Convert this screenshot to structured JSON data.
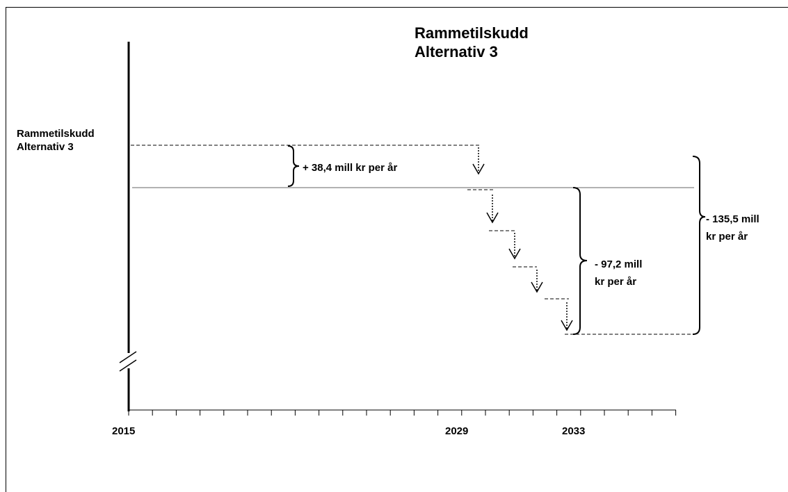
{
  "title": [
    "Rammetilskudd",
    "Alternativ 3"
  ],
  "level_label": [
    "Rammetilskudd",
    "Alternativ 3"
  ],
  "annotations": {
    "increase": "+ 38,4 mill kr per år",
    "decrease_step": [
      "- 97,2 mill",
      "kr per år"
    ],
    "decrease_total": [
      "- 135,5 mill",
      "kr per år"
    ]
  },
  "x_labels": [
    "2015",
    "2029",
    "2033"
  ]
}
